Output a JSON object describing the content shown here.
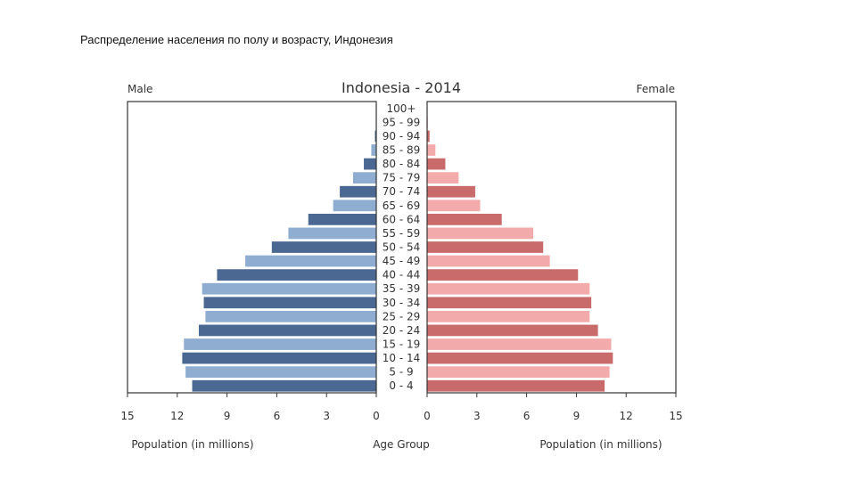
{
  "slide": {
    "title": "Распределение населения по полу и возрасту, Индонезия"
  },
  "chart_data": {
    "type": "bar",
    "subtype": "population-pyramid",
    "title": "Indonesia - 2014",
    "left_label": "Male",
    "right_label": "Female",
    "center_axis_label": "Age Group",
    "xlabel_left": "Population (in millions)",
    "xlabel_right": "Population (in millions)",
    "xlim": [
      0,
      15
    ],
    "ticks": [
      0,
      3,
      6,
      9,
      12,
      15
    ],
    "categories": [
      "0 - 4",
      "5 - 9",
      "10 - 14",
      "15 - 19",
      "20 - 24",
      "25 - 29",
      "30 - 34",
      "35 - 39",
      "40 - 44",
      "45 - 49",
      "50 - 54",
      "55 - 59",
      "60 - 64",
      "65 - 69",
      "70 - 74",
      "75 - 79",
      "80 - 84",
      "85 - 89",
      "90 - 94",
      "95 - 99",
      "100+"
    ],
    "series": [
      {
        "name": "Male",
        "values": [
          11.1,
          11.5,
          11.7,
          11.6,
          10.7,
          10.3,
          10.4,
          10.5,
          9.6,
          7.9,
          6.3,
          5.3,
          4.1,
          2.6,
          2.2,
          1.4,
          0.75,
          0.3,
          0.08,
          0.02,
          0.01
        ]
      },
      {
        "name": "Female",
        "values": [
          10.7,
          11.0,
          11.2,
          11.1,
          10.3,
          9.8,
          9.9,
          9.8,
          9.1,
          7.4,
          7.0,
          6.4,
          4.5,
          3.2,
          2.9,
          1.9,
          1.1,
          0.5,
          0.15,
          0.04,
          0.01
        ]
      }
    ],
    "colors": {
      "male_dark": "#4a6891",
      "male_light": "#8fadd0",
      "female_dark": "#c96a6b",
      "female_light": "#f2abaa",
      "frame": "#333333"
    }
  }
}
